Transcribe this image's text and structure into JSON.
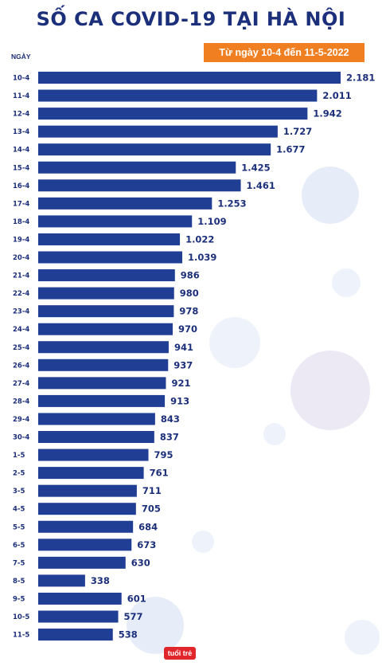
{
  "header": {
    "title": "SỐ CA COVID-19 TẠI HÀ NỘI",
    "subtitle": "Từ ngày 10-4 đến 11-5-2022"
  },
  "axis": {
    "ylabel": "NGÀY"
  },
  "logo": {
    "text": "tuoitre"
  },
  "colors": {
    "bar": "#1f3e94",
    "title": "#1b2f7a",
    "badge": "#f07f22"
  },
  "chart_data": {
    "type": "bar",
    "orientation": "horizontal",
    "title": "SỐ CA COVID-19 TẠI HÀ NỘI",
    "subtitle": "Từ ngày 10-4 đến 11-5-2022",
    "ylabel": "NGÀY",
    "xlabel": "",
    "categories": [
      "10-4",
      "11-4",
      "12-4",
      "13-4",
      "14-4",
      "15-4",
      "16-4",
      "17-4",
      "18-4",
      "19-4",
      "20-4",
      "21-4",
      "22-4",
      "23-4",
      "24-4",
      "25-4",
      "26-4",
      "27-4",
      "28-4",
      "29-4",
      "30-4",
      "1-5",
      "2-5",
      "3-5",
      "4-5",
      "5-5",
      "6-5",
      "7-5",
      "8-5",
      "9-5",
      "10-5",
      "11-5"
    ],
    "values": [
      2181,
      2011,
      1942,
      1727,
      1677,
      1425,
      1461,
      1253,
      1109,
      1022,
      1039,
      986,
      980,
      978,
      970,
      941,
      937,
      921,
      913,
      843,
      837,
      795,
      761,
      711,
      705,
      684,
      673,
      630,
      338,
      601,
      577,
      538
    ],
    "value_labels": [
      "2.181",
      "2.011",
      "1.942",
      "1.727",
      "1.677",
      "1.425",
      "1.461",
      "1.253",
      "1.109",
      "1.022",
      "1.039",
      "986",
      "980",
      "978",
      "970",
      "941",
      "937",
      "921",
      "913",
      "843",
      "837",
      "795",
      "761",
      "711",
      "705",
      "684",
      "673",
      "630",
      "338",
      "601",
      "577",
      "538"
    ],
    "xlim": [
      0,
      2181
    ],
    "grid": false,
    "legend": "none"
  }
}
